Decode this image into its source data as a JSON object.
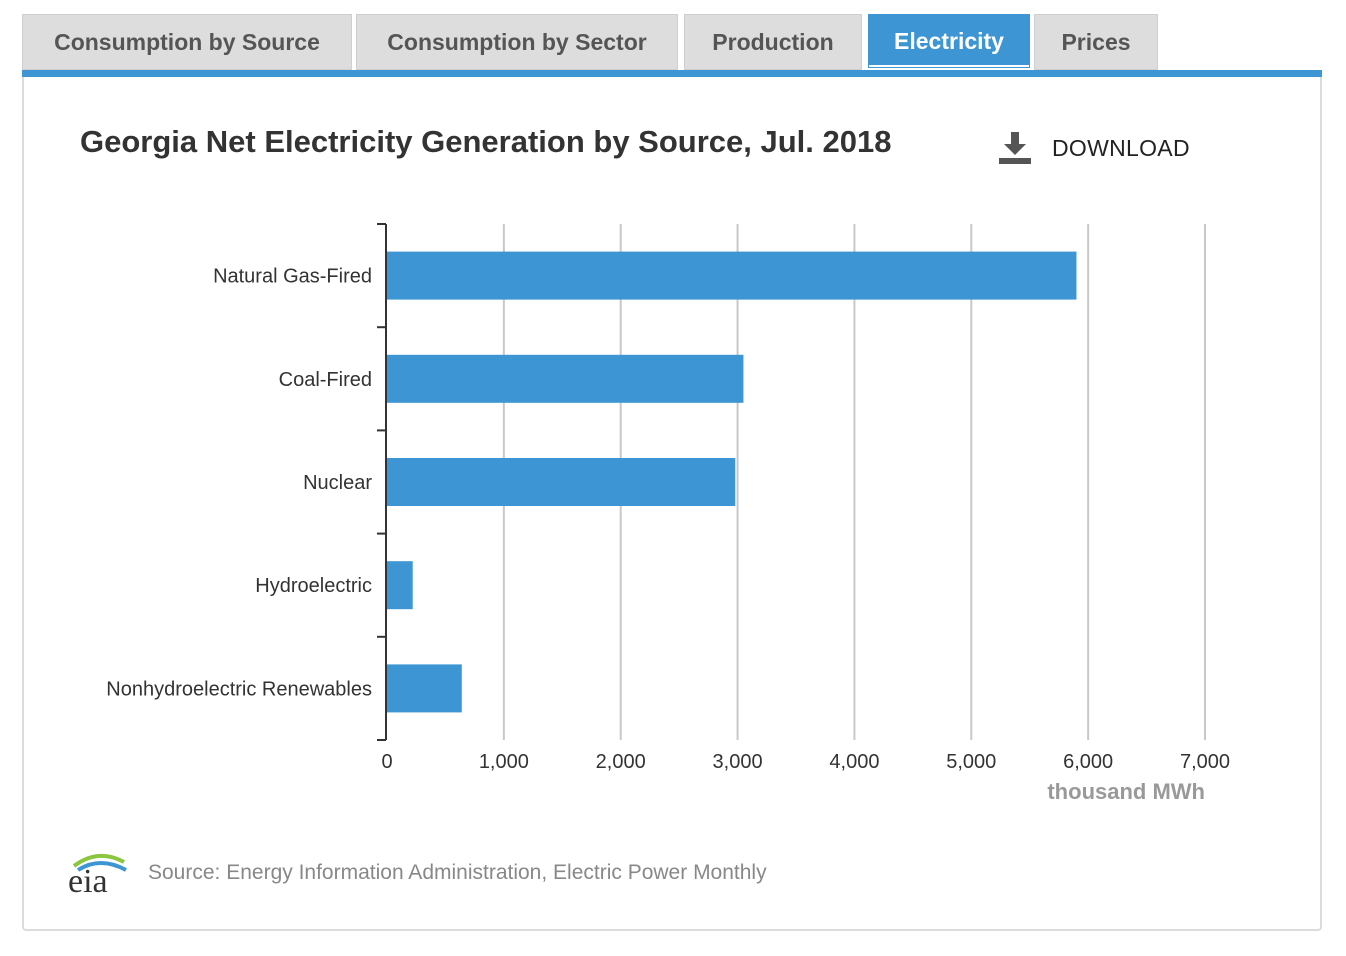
{
  "tabs": [
    {
      "label": "Consumption by Source",
      "active": false
    },
    {
      "label": "Consumption by Sector",
      "active": false
    },
    {
      "label": "Production",
      "active": false
    },
    {
      "label": "Electricity",
      "active": true
    },
    {
      "label": "Prices",
      "active": false
    }
  ],
  "download_label": "DOWNLOAD",
  "source_text": "Source: Energy Information Administration, Electric Power Monthly",
  "logo_text": "eia",
  "colors": {
    "accent": "#3d95d3",
    "bar": "#3d95d3",
    "grid": "#c8c8c8",
    "tab_bg": "#dddddd"
  },
  "chart_data": {
    "type": "bar",
    "orientation": "horizontal",
    "title": "Georgia Net Electricity Generation by Source, Jul. 2018",
    "xlabel": "thousand MWh",
    "ylabel": "",
    "categories": [
      "Natural Gas-Fired",
      "Coal-Fired",
      "Nuclear",
      "Hydroelectric",
      "Nonhydroelectric Renewables"
    ],
    "values": [
      5900,
      3050,
      2980,
      220,
      640
    ],
    "xlim": [
      0,
      7000
    ],
    "xticks": [
      0,
      1000,
      2000,
      3000,
      4000,
      5000,
      6000,
      7000
    ],
    "xtick_labels": [
      "0",
      "1,000",
      "2,000",
      "3,000",
      "4,000",
      "5,000",
      "6,000",
      "7,000"
    ],
    "grid": true,
    "legend": "none"
  }
}
